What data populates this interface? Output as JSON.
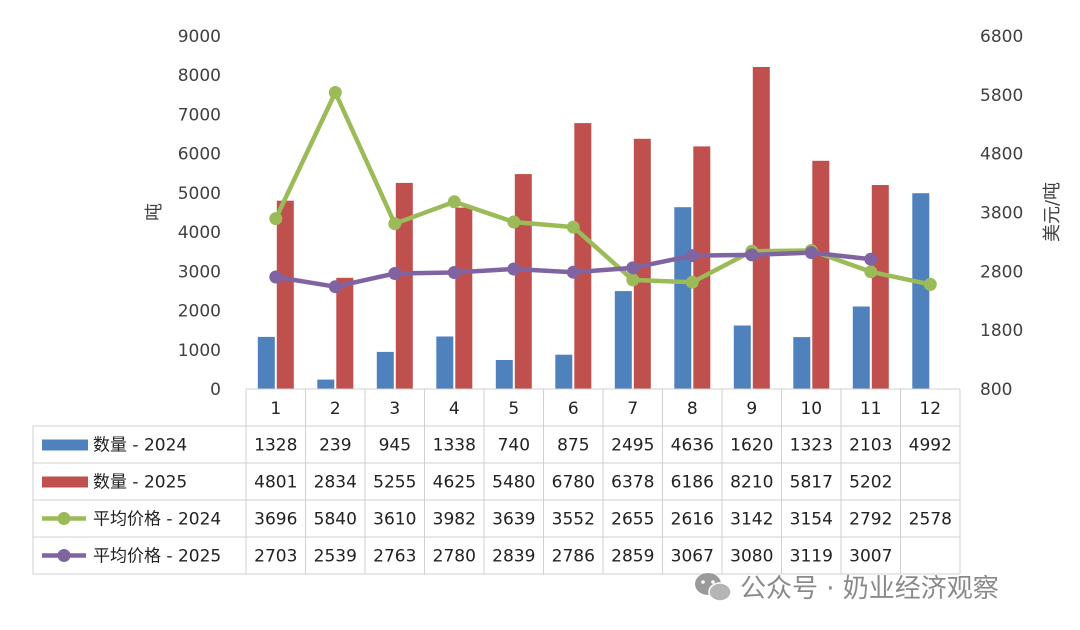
{
  "chart_data": {
    "type": "bar",
    "categories": [
      "1",
      "2",
      "3",
      "4",
      "5",
      "6",
      "7",
      "8",
      "9",
      "10",
      "11",
      "12"
    ],
    "y_left": {
      "label": "吨",
      "ticks": [
        "0",
        "1000",
        "2000",
        "3000",
        "4000",
        "5000",
        "6000",
        "7000",
        "8000",
        "9000"
      ],
      "range": [
        0,
        9000
      ]
    },
    "y_right": {
      "label": "美元/吨",
      "ticks": [
        "800",
        "1800",
        "2800",
        "3800",
        "4800",
        "5800",
        "6800"
      ],
      "range": [
        800,
        6800
      ]
    },
    "bar_series": [
      {
        "name": "数量 - 2024",
        "color": "#4F81BD",
        "values": [
          1328,
          239,
          945,
          1338,
          740,
          875,
          2495,
          4636,
          1620,
          1323,
          2103,
          4992
        ]
      },
      {
        "name": "数量 - 2025",
        "color": "#C0504D",
        "values": [
          4801,
          2834,
          5255,
          4625,
          5480,
          6780,
          6378,
          6186,
          8210,
          5817,
          5202,
          null
        ]
      }
    ],
    "line_series": [
      {
        "name": "平均价格 - 2024",
        "color": "#9BBB59",
        "axis": "right",
        "values": [
          3696,
          5840,
          3610,
          3982,
          3639,
          3552,
          2655,
          2616,
          3142,
          3154,
          2792,
          2578
        ]
      },
      {
        "name": "平均价格 - 2025",
        "color": "#8064A2",
        "axis": "right",
        "values": [
          2703,
          2539,
          2763,
          2780,
          2839,
          2786,
          2859,
          3067,
          3080,
          3119,
          3007,
          null
        ]
      }
    ],
    "data_table": true,
    "grid": false
  },
  "watermark": {
    "text": "公众号 · 奶业经济观察",
    "icon": "wechat-icon"
  }
}
